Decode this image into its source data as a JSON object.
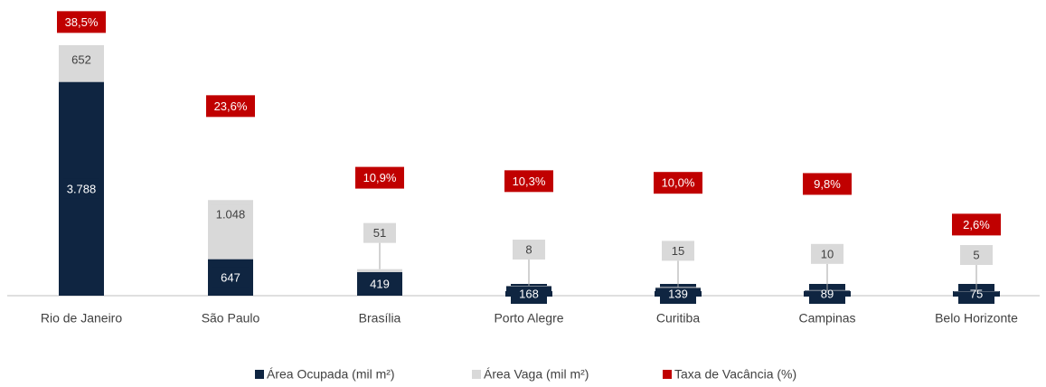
{
  "chart_data": {
    "type": "bar",
    "stacked": true,
    "categories": [
      "Rio de Janeiro",
      "São Paulo",
      "Brasília",
      "Porto Alegre",
      "Curitiba",
      "Campinas",
      "Belo Horizonte"
    ],
    "series": [
      {
        "name": "Área Ocupada (mil m²)",
        "color": "#0f2541",
        "values": [
          3788,
          647,
          419,
          168,
          139,
          89,
          75
        ],
        "value_labels": [
          "3.788",
          "647",
          "419",
          "168",
          "139",
          "89",
          "75"
        ]
      },
      {
        "name": "Área Vaga (mil m²)",
        "color": "#d9d9d9",
        "values": [
          652,
          1048,
          51,
          8,
          15,
          10,
          5
        ],
        "value_labels": [
          "652",
          "1.048",
          "51",
          "8",
          "15",
          "10",
          "5"
        ]
      },
      {
        "name": "Taxa de Vacância (%)",
        "color": "#c00000",
        "axis": "y2",
        "values": [
          38.5,
          23.6,
          10.9,
          10.3,
          10.0,
          9.8,
          2.6
        ],
        "value_labels": [
          "38,5%",
          "23,6%",
          "10,9%",
          "10,3%",
          "10,0%",
          "9,8%",
          "2,6%"
        ]
      }
    ],
    "ylim": [
      0,
      5000
    ],
    "y2lim": [
      -10,
      40
    ],
    "grid": false,
    "legend": "bottom"
  }
}
